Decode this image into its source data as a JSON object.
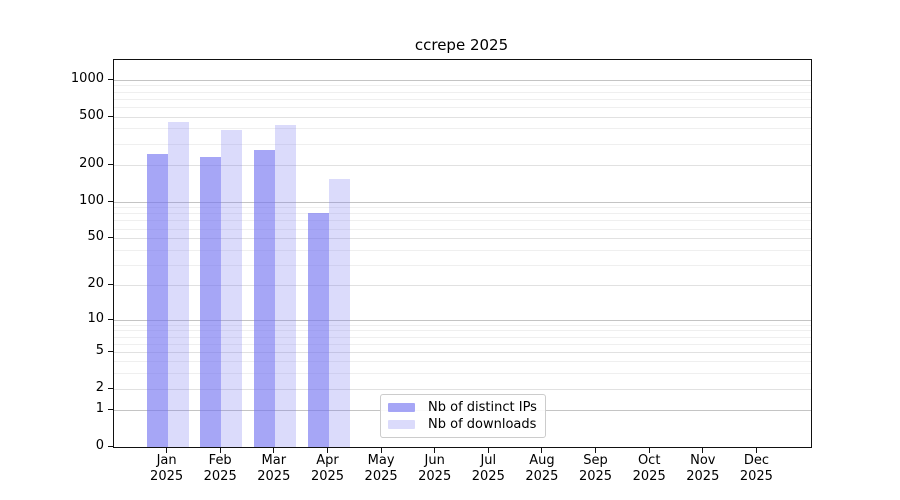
{
  "chart_data": {
    "type": "bar",
    "title": "ccrepe 2025",
    "categories": [
      "Jan 2025",
      "Feb 2025",
      "Mar 2025",
      "Apr 2025",
      "May 2025",
      "Jun 2025",
      "Jul 2025",
      "Aug 2025",
      "Sep 2025",
      "Oct 2025",
      "Nov 2025",
      "Dec 2025"
    ],
    "series": [
      {
        "name": "Nb of distinct IPs",
        "color": "#7070f0",
        "alpha": 0.62,
        "values": [
          246,
          235,
          265,
          80,
          null,
          null,
          null,
          null,
          null,
          null,
          null,
          null
        ]
      },
      {
        "name": "Nb of downloads",
        "color": "#7070f0",
        "alpha": 0.25,
        "values": [
          455,
          390,
          425,
          155,
          null,
          null,
          null,
          null,
          null,
          null,
          null,
          null
        ]
      }
    ],
    "xlabel": "",
    "ylabel": "",
    "y_ticks": [
      0,
      1,
      2,
      5,
      10,
      20,
      50,
      100,
      200,
      500,
      1000
    ],
    "yscale": "log10(1+x)",
    "ylim": [
      0,
      1480
    ],
    "grid": "horizontal major and log-minor gridlines",
    "legend_position": "inside plot, lower center",
    "colors": {
      "bar_distinct_ips_rendered": "#a6a6f6",
      "bar_downloads_rendered": "#dbdbfb",
      "gridline_strong": "#c4c4c4",
      "gridline_medium": "#e1e1e1",
      "gridline_faint": "#efefef",
      "axis": "#111111",
      "legend_border": "#cccccc"
    }
  }
}
